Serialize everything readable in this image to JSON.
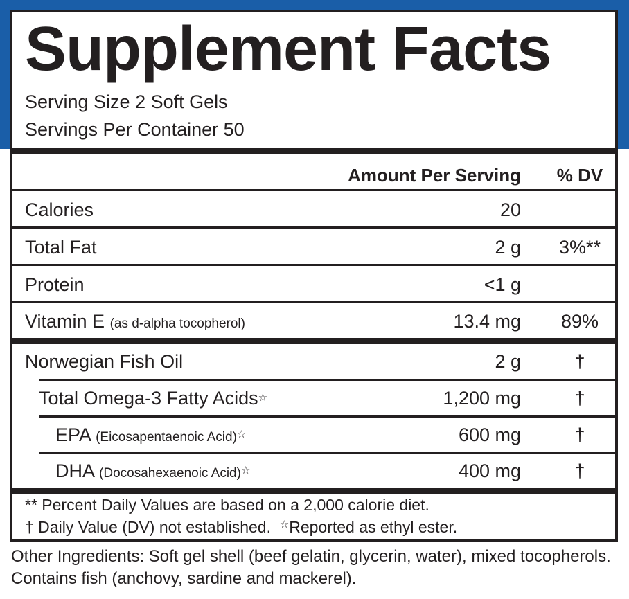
{
  "header": {
    "title": "Supplement Facts",
    "serving_size": "Serving Size 2 Soft Gels",
    "servings_per_container": "Servings Per Container 50"
  },
  "columns": {
    "amount": "Amount Per Serving",
    "dv": "% DV"
  },
  "nutrients": [
    {
      "name": "Calories",
      "sub": "",
      "amount": "20",
      "dv": ""
    },
    {
      "name": "Total Fat",
      "sub": "",
      "amount": "2 g",
      "dv": "3%**"
    },
    {
      "name": "Protein",
      "sub": "",
      "amount": "<1 g",
      "dv": ""
    },
    {
      "name": "Vitamin E",
      "sub": "(as d-alpha tocopherol)",
      "amount": "13.4 mg",
      "dv": "89%"
    }
  ],
  "ingredients": [
    {
      "name": "Norwegian Fish Oil",
      "sub": "",
      "star": "",
      "amount": "2 g",
      "dv": "†"
    },
    {
      "name": "Total Omega-3 Fatty Acids",
      "sub": "",
      "star": "☆",
      "amount": "1,200 mg",
      "dv": "†"
    },
    {
      "name": "EPA",
      "sub": "(Eicosapentaenoic Acid)",
      "star": "☆",
      "amount": "600 mg",
      "dv": "†"
    },
    {
      "name": "DHA",
      "sub": "(Docosahexaenoic Acid)",
      "star": "☆",
      "amount": "400 mg",
      "dv": "†"
    }
  ],
  "footnotes": {
    "line1": "** Percent Daily Values are based on a 2,000 calorie diet.",
    "line2a": "† Daily Value (DV) not established.",
    "line2_star": "☆",
    "line2b": "Reported as ethyl ester."
  },
  "other_ingredients": "Other Ingredients: Soft gel shell (beef gelatin, glycerin, water), mixed tocopherols. Contains fish (anchovy, sardine and mackerel).",
  "colors": {
    "band": "#1a5ea8",
    "text": "#231f20"
  }
}
